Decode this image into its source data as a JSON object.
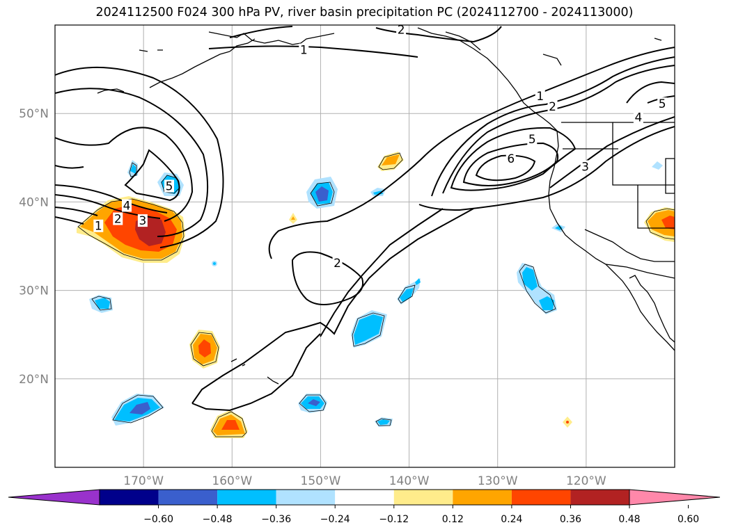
{
  "title": "2024112500 F024 300 hPa PV, river basin precipitation PC (2024112700 - 2024113000)",
  "map": {
    "lon_range": [
      -180,
      -110
    ],
    "lat_range": [
      10,
      60
    ],
    "lon_ticks": [
      {
        "lon": -170,
        "label": "170°W"
      },
      {
        "lon": -160,
        "label": "160°W"
      },
      {
        "lon": -150,
        "label": "150°W"
      },
      {
        "lon": -140,
        "label": "140°W"
      },
      {
        "lon": -130,
        "label": "130°W"
      },
      {
        "lon": -120,
        "label": "120°W"
      }
    ],
    "lat_ticks": [
      {
        "lat": 20,
        "label": "20°N"
      },
      {
        "lat": 30,
        "label": "30°N"
      },
      {
        "lat": 40,
        "label": "40°N"
      },
      {
        "lat": 50,
        "label": "50°N"
      }
    ],
    "gridlines": true,
    "contour_labels": [
      {
        "text": "1",
        "lon": -151.9,
        "lat": 57.2
      },
      {
        "text": "2",
        "lon": -140.9,
        "lat": 59.5
      },
      {
        "text": "1",
        "lon": -175.1,
        "lat": 37.3
      },
      {
        "text": "2",
        "lon": -172.9,
        "lat": 38.1
      },
      {
        "text": "3",
        "lon": -170.1,
        "lat": 37.9
      },
      {
        "text": "4",
        "lon": -171.9,
        "lat": 39.6
      },
      {
        "text": "5",
        "lon": -167.1,
        "lat": 41.8
      },
      {
        "text": "2",
        "lon": -148.1,
        "lat": 33.1
      },
      {
        "text": "1",
        "lon": -125.2,
        "lat": 52.0
      },
      {
        "text": "2",
        "lon": -123.8,
        "lat": 50.8
      },
      {
        "text": "5",
        "lon": -126.1,
        "lat": 47.1
      },
      {
        "text": "6",
        "lon": -128.5,
        "lat": 44.9
      },
      {
        "text": "3",
        "lon": -120.1,
        "lat": 44.0
      },
      {
        "text": "4",
        "lon": -114.1,
        "lat": 49.6
      },
      {
        "text": "5",
        "lon": -111.4,
        "lat": 51.1
      }
    ]
  },
  "colorbar": {
    "colors": [
      "#9932cc",
      "#00008b",
      "#3a5fcd",
      "#00bfff",
      "#b0e2ff",
      "#ffffff",
      "#ffec8b",
      "#ffa500",
      "#ff4500",
      "#b22222",
      "#ff88aa"
    ],
    "tick_labels": [
      "−0.60",
      "−0.48",
      "−0.36",
      "−0.24",
      "−0.12",
      "0.12",
      "0.24",
      "0.36",
      "0.48",
      "0.60"
    ]
  }
}
